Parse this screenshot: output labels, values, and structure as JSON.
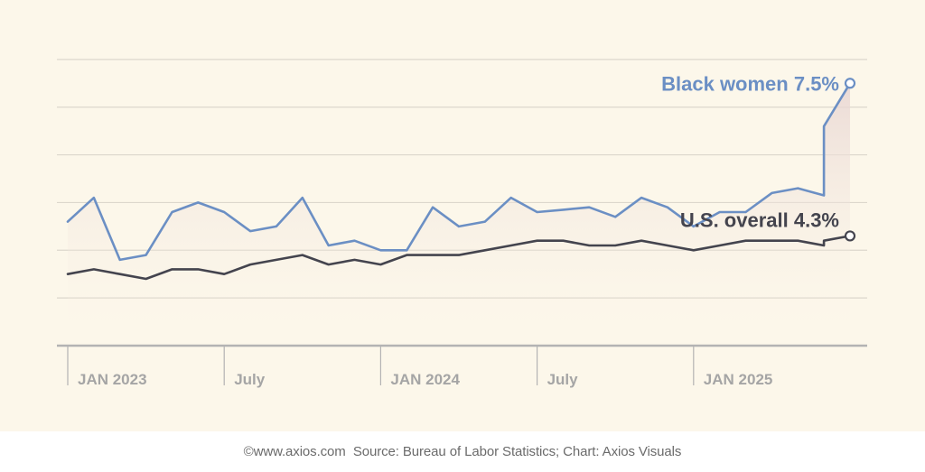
{
  "chart_data": {
    "type": "line",
    "title": "",
    "xlabel": "",
    "ylabel": "",
    "ylim": [
      2,
      9
    ],
    "grid": true,
    "x_ticks": [
      {
        "index": 0,
        "label": "JAN 2023"
      },
      {
        "index": 6,
        "label": "July"
      },
      {
        "index": 12,
        "label": "JAN 2024"
      },
      {
        "index": 18,
        "label": "July"
      },
      {
        "index": 24,
        "label": "JAN 2025"
      }
    ],
    "series": [
      {
        "name": "Black women",
        "color": "#6b8fc4",
        "label_text": "Black women 7.5%",
        "end_value": 7.5,
        "points": [
          [
            0,
            4.6
          ],
          [
            1,
            5.1
          ],
          [
            2,
            3.8
          ],
          [
            3,
            3.9
          ],
          [
            4,
            4.8
          ],
          [
            5,
            5.0
          ],
          [
            6,
            4.8
          ],
          [
            7,
            4.4
          ],
          [
            8,
            4.5
          ],
          [
            9,
            5.1
          ],
          [
            10,
            4.1
          ],
          [
            11,
            4.2
          ],
          [
            12,
            4.0
          ],
          [
            13,
            4.0
          ],
          [
            14,
            4.9
          ],
          [
            15,
            4.5
          ],
          [
            16,
            4.6
          ],
          [
            17,
            5.1
          ],
          [
            18,
            4.8
          ],
          [
            19,
            4.85
          ],
          [
            20,
            4.9
          ],
          [
            21,
            4.7
          ],
          [
            22,
            5.1
          ],
          [
            23,
            4.9
          ],
          [
            24,
            4.5
          ],
          [
            25,
            4.8
          ],
          [
            26,
            4.8
          ],
          [
            27,
            5.2
          ],
          [
            28,
            5.3
          ],
          [
            29,
            5.15
          ],
          [
            29,
            6.6
          ],
          [
            30,
            7.5
          ]
        ]
      },
      {
        "name": "U.S. overall",
        "color": "#44444e",
        "label_text": "U.S. overall 4.3%",
        "end_value": 4.3,
        "points": [
          [
            0,
            3.5
          ],
          [
            1,
            3.6
          ],
          [
            2,
            3.5
          ],
          [
            3,
            3.4
          ],
          [
            4,
            3.6
          ],
          [
            5,
            3.6
          ],
          [
            6,
            3.5
          ],
          [
            7,
            3.7
          ],
          [
            8,
            3.8
          ],
          [
            9,
            3.9
          ],
          [
            10,
            3.7
          ],
          [
            11,
            3.8
          ],
          [
            12,
            3.7
          ],
          [
            13,
            3.9
          ],
          [
            14,
            3.9
          ],
          [
            15,
            3.9
          ],
          [
            16,
            4.0
          ],
          [
            17,
            4.1
          ],
          [
            18,
            4.2
          ],
          [
            19,
            4.2
          ],
          [
            20,
            4.1
          ],
          [
            21,
            4.1
          ],
          [
            22,
            4.2
          ],
          [
            23,
            4.1
          ],
          [
            24,
            4.0
          ],
          [
            25,
            4.1
          ],
          [
            26,
            4.2
          ],
          [
            27,
            4.2
          ],
          [
            28,
            4.2
          ],
          [
            29,
            4.1
          ],
          [
            29,
            4.2
          ],
          [
            30,
            4.3
          ]
        ]
      }
    ]
  },
  "footer": {
    "copyright": "©www.axios.com",
    "source": "Source: Bureau of Labor Statistics; Chart: Axios Visuals"
  },
  "colors": {
    "background": "#fcf7ea",
    "grid": "#dcd7cc",
    "axis": "#b3b3b3",
    "tick_text": "#a5a5a5"
  }
}
